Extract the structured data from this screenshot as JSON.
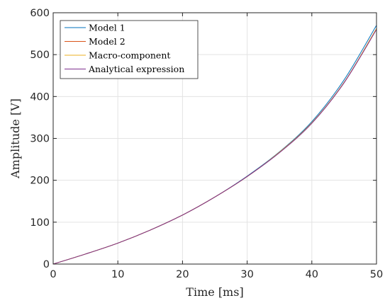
{
  "chart_data": {
    "type": "line",
    "xlabel": "Time [ms]",
    "ylabel": "Amplitude [V]",
    "xlim": [
      0,
      50
    ],
    "ylim": [
      0,
      600
    ],
    "xticks": [
      0,
      10,
      20,
      30,
      40,
      50
    ],
    "yticks": [
      0,
      100,
      200,
      300,
      400,
      500,
      600
    ],
    "grid": true,
    "legend_position": "top-left",
    "x": [
      0,
      5,
      10,
      15,
      20,
      25,
      30,
      35,
      40,
      45,
      50
    ],
    "series": [
      {
        "name": "Model 1",
        "color": "#0072BD",
        "values": [
          0,
          24,
          50,
          81,
          117,
          160,
          210,
          268,
          340,
          440,
          570
        ]
      },
      {
        "name": "Model 2",
        "color": "#D95319",
        "values": [
          0,
          24,
          50,
          81,
          117,
          160,
          209,
          267,
          337,
          434,
          562
        ]
      },
      {
        "name": "Macro-component",
        "color": "#EDB120",
        "values": [
          0,
          24,
          50,
          81,
          117,
          160,
          209,
          267,
          337,
          434,
          562
        ]
      },
      {
        "name": "Analytical expression",
        "color": "#7E2F8E",
        "values": [
          0,
          24,
          50,
          81,
          117,
          160,
          209,
          266,
          336,
          433,
          560
        ]
      }
    ]
  }
}
